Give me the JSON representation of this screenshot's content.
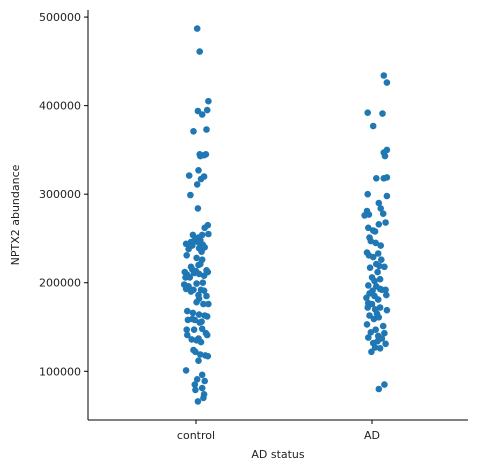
{
  "chart_data": {
    "type": "scatter",
    "subtype": "strip",
    "xlabel": "AD status",
    "ylabel": "NPTX2 abundance",
    "categories": [
      "control",
      "AD"
    ],
    "ylim": [
      45000,
      508000
    ],
    "yticks": [
      100000,
      200000,
      300000,
      400000,
      500000
    ],
    "ytick_labels": [
      "100000",
      "200000",
      "300000",
      "400000",
      "500000"
    ],
    "grid": false,
    "color": "#1f77b4",
    "series": [
      {
        "category": "control",
        "points": [
          [
            0.02,
            487000
          ],
          [
            0.06,
            461000
          ],
          [
            0.2,
            405000
          ],
          [
            0.03,
            394000
          ],
          [
            0.1,
            390000
          ],
          [
            0.18,
            395000
          ],
          [
            0.17,
            373000
          ],
          [
            -0.04,
            371000
          ],
          [
            0.06,
            345000
          ],
          [
            0.13,
            344000
          ],
          [
            0.16,
            345000
          ],
          [
            0.07,
            343000
          ],
          [
            -0.11,
            321000
          ],
          [
            0.04,
            327000
          ],
          [
            0.13,
            320000
          ],
          [
            0.08,
            317000
          ],
          [
            0.02,
            311000
          ],
          [
            -0.09,
            299000
          ],
          [
            0.03,
            284000
          ],
          [
            0.19,
            265000
          ],
          [
            0.14,
            262000
          ],
          [
            0.2,
            255000
          ],
          [
            0.1,
            254000
          ],
          [
            -0.05,
            254000
          ],
          [
            0.04,
            251000
          ],
          [
            -0.08,
            246000
          ],
          [
            -0.03,
            247000
          ],
          [
            0.0,
            248000
          ],
          [
            0.07,
            248000
          ],
          [
            -0.16,
            244000
          ],
          [
            -0.11,
            243000
          ],
          [
            -0.06,
            242000
          ],
          [
            0.03,
            246000
          ],
          [
            -0.12,
            238000
          ],
          [
            0.11,
            243000
          ],
          [
            0.05,
            239000
          ],
          [
            0.14,
            240000
          ],
          [
            0.09,
            235000
          ],
          [
            -0.15,
            231000
          ],
          [
            0.01,
            228000
          ],
          [
            0.1,
            226000
          ],
          [
            0.07,
            221000
          ],
          [
            -0.08,
            218000
          ],
          [
            0.04,
            220000
          ],
          [
            -0.06,
            215000
          ],
          [
            0.17,
            214000
          ],
          [
            -0.18,
            212000
          ],
          [
            -0.14,
            209000
          ],
          [
            -0.03,
            211000
          ],
          [
            0.0,
            213000
          ],
          [
            0.13,
            208000
          ],
          [
            -0.17,
            206000
          ],
          [
            -0.1,
            206000
          ],
          [
            0.05,
            210000
          ],
          [
            0.19,
            212000
          ],
          [
            -0.19,
            198000
          ],
          [
            -0.12,
            196000
          ],
          [
            0.01,
            199000
          ],
          [
            0.11,
            200000
          ],
          [
            -0.16,
            193000
          ],
          [
            -0.04,
            192000
          ],
          [
            -0.08,
            190000
          ],
          [
            0.04,
            186000
          ],
          [
            0.08,
            192000
          ],
          [
            0.13,
            191000
          ],
          [
            0.17,
            185000
          ],
          [
            0.05,
            182000
          ],
          [
            0.01,
            178000
          ],
          [
            0.12,
            176000
          ],
          [
            0.2,
            176000
          ],
          [
            -0.14,
            168000
          ],
          [
            -0.05,
            166000
          ],
          [
            0.05,
            164000
          ],
          [
            0.14,
            163000
          ],
          [
            0.18,
            162000
          ],
          [
            -0.13,
            158000
          ],
          [
            -0.06,
            159000
          ],
          [
            -0.02,
            158000
          ],
          [
            0.09,
            156000
          ],
          [
            0.06,
            155000
          ],
          [
            -0.15,
            147000
          ],
          [
            -0.03,
            147000
          ],
          [
            0.1,
            148000
          ],
          [
            0.16,
            143000
          ],
          [
            -0.14,
            141000
          ],
          [
            0.18,
            141000
          ],
          [
            0.04,
            137000
          ],
          [
            -0.07,
            136000
          ],
          [
            0.01,
            135000
          ],
          [
            0.08,
            133000
          ],
          [
            -0.04,
            124000
          ],
          [
            -0.01,
            122000
          ],
          [
            0.07,
            119000
          ],
          [
            0.15,
            118000
          ],
          [
            0.19,
            117000
          ],
          [
            0.04,
            112000
          ],
          [
            -0.16,
            101000
          ],
          [
            0.1,
            96000
          ],
          [
            0.02,
            91000
          ],
          [
            0.14,
            89000
          ],
          [
            -0.02,
            85000
          ],
          [
            0.1,
            81000
          ],
          [
            -0.01,
            79000
          ],
          [
            0.13,
            74000
          ],
          [
            0.12,
            70000
          ],
          [
            0.03,
            66000
          ]
        ]
      },
      {
        "category": "AD",
        "points": [
          [
            0.19,
            434000
          ],
          [
            0.24,
            426000
          ],
          [
            -0.07,
            392000
          ],
          [
            0.17,
            391000
          ],
          [
            0.02,
            377000
          ],
          [
            0.24,
            350000
          ],
          [
            0.19,
            347000
          ],
          [
            0.21,
            343000
          ],
          [
            0.24,
            319000
          ],
          [
            0.19,
            318000
          ],
          [
            0.07,
            318000
          ],
          [
            -0.07,
            300000
          ],
          [
            0.24,
            298000
          ],
          [
            0.11,
            290000
          ],
          [
            0.14,
            284000
          ],
          [
            -0.08,
            281000
          ],
          [
            0.18,
            278000
          ],
          [
            -0.05,
            277000
          ],
          [
            -0.12,
            276000
          ],
          [
            0.22,
            268000
          ],
          [
            0.11,
            266000
          ],
          [
            -0.06,
            262000
          ],
          [
            0.02,
            259000
          ],
          [
            0.05,
            258000
          ],
          [
            -0.04,
            251000
          ],
          [
            -0.02,
            247000
          ],
          [
            0.06,
            245000
          ],
          [
            0.14,
            242000
          ],
          [
            -0.08,
            234000
          ],
          [
            0.1,
            233000
          ],
          [
            -0.05,
            231000
          ],
          [
            0.02,
            229000
          ],
          [
            0.15,
            226000
          ],
          [
            0.07,
            221000
          ],
          [
            -0.03,
            217000
          ],
          [
            0.2,
            218000
          ],
          [
            0.12,
            219000
          ],
          [
            0.09,
            212000
          ],
          [
            0.0,
            206000
          ],
          [
            0.04,
            202000
          ],
          [
            0.13,
            204000
          ],
          [
            -0.06,
            197000
          ],
          [
            0.07,
            196000
          ],
          [
            0.01,
            191000
          ],
          [
            -0.04,
            188000
          ],
          [
            0.13,
            193000
          ],
          [
            0.16,
            192000
          ],
          [
            0.22,
            192000
          ],
          [
            0.23,
            186000
          ],
          [
            -0.09,
            183000
          ],
          [
            0.04,
            185000
          ],
          [
            -0.06,
            177000
          ],
          [
            0.1,
            181000
          ],
          [
            0.0,
            176000
          ],
          [
            -0.07,
            172000
          ],
          [
            0.05,
            170000
          ],
          [
            0.13,
            172000
          ],
          [
            0.24,
            169000
          ],
          [
            0.08,
            165000
          ],
          [
            -0.04,
            163000
          ],
          [
            0.03,
            159000
          ],
          [
            0.11,
            161000
          ],
          [
            -0.08,
            153000
          ],
          [
            0.18,
            151000
          ],
          [
            0.06,
            147000
          ],
          [
            -0.02,
            144000
          ],
          [
            0.2,
            143000
          ],
          [
            0.1,
            140000
          ],
          [
            -0.06,
            138000
          ],
          [
            0.16,
            137000
          ],
          [
            0.09,
            134000
          ],
          [
            0.02,
            132000
          ],
          [
            0.22,
            131000
          ],
          [
            0.05,
            127000
          ],
          [
            0.13,
            126000
          ],
          [
            -0.01,
            122000
          ],
          [
            0.2,
            85000
          ],
          [
            0.11,
            80000
          ]
        ]
      }
    ]
  }
}
